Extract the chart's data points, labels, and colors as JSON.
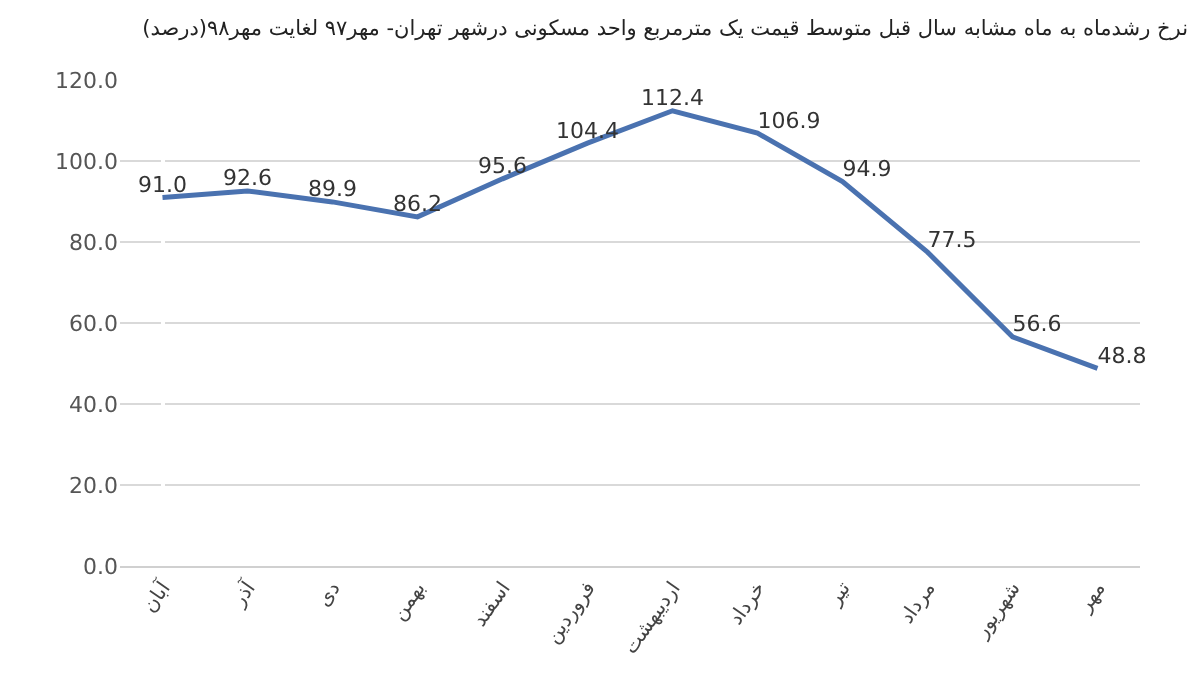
{
  "chart_data": {
    "type": "line",
    "title": "نرخ رشدماه به ماه مشابه سال قبل متوسط قیمت یک مترمربع واحد مسکونی درشهر تهران- مهر۹۷ لغایت مهر۹۸(درصد)",
    "categories": [
      "آبان",
      "آذر",
      "دی",
      "بهمن",
      "اسفند",
      "فروردین",
      "اردیبهشت",
      "خرداد",
      "تیر",
      "مرداد",
      "شهریور",
      "مهر"
    ],
    "series": [
      {
        "color": "#4a72b0",
        "values": [
          91.0,
          92.6,
          89.9,
          86.2,
          95.6,
          104.4,
          112.4,
          106.9,
          94.9,
          77.5,
          56.6,
          48.8
        ]
      }
    ],
    "value_labels": [
      "91.0",
      "92.6",
      "89.9",
      "86.2",
      "95.6",
      "104.4",
      "112.4",
      "106.9",
      "94.9",
      "77.5",
      "56.6",
      "48.8"
    ],
    "ylim": [
      0,
      120
    ],
    "yticks": [
      {
        "value": 0,
        "label": "0.0"
      },
      {
        "value": 20,
        "label": "20.0"
      },
      {
        "value": 40,
        "label": "40.0"
      },
      {
        "value": 60,
        "label": "60.0"
      },
      {
        "value": 80,
        "label": "80.0"
      },
      {
        "value": 100,
        "label": "100.0"
      },
      {
        "value": 120,
        "label": "120.0"
      }
    ],
    "grid": "y",
    "marker": "none",
    "line_style": "solid"
  }
}
